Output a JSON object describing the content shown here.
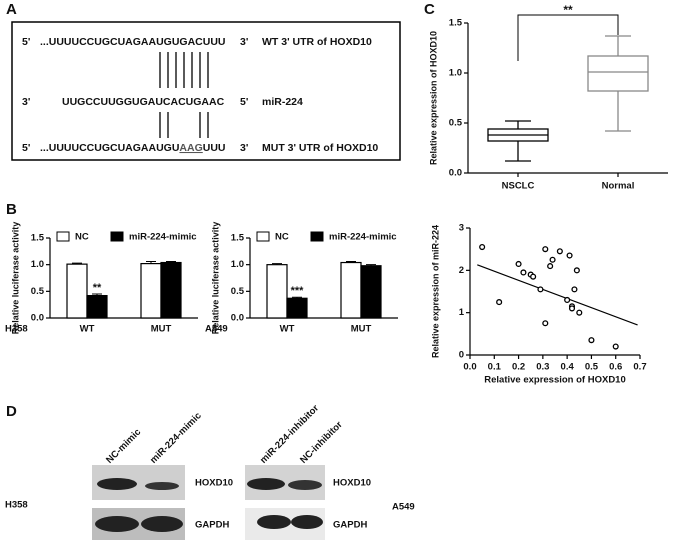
{
  "panels": {
    "a": "A",
    "b": "B",
    "c": "C",
    "d": "D"
  },
  "sequence": {
    "rows": [
      {
        "left": "5'",
        "seq": "...UUUUCCUGCUAGAAUGUGACUUU",
        "right": "3'",
        "label": "WT 3' UTR of HOXD10"
      },
      {
        "left": "3'",
        "seq": "UUGCCUUGGUGAUCACUGAAC",
        "right": "5'",
        "label": "miR-224"
      },
      {
        "left": "5'",
        "seq": "...UUUUCCUGCUAGAAUGU",
        "seq_underlined": "AAG",
        "seq_end": "UUU",
        "right": "3'",
        "label": "MUT 3' UTR of HOXD10"
      }
    ]
  },
  "chart_data": [
    {
      "type": "box",
      "ylabel": "Relative expression of HOXD10",
      "categories": [
        "NSCLC",
        "Normal"
      ],
      "colors": [
        "#000000",
        "#888888"
      ],
      "boxes": [
        {
          "min": 0.12,
          "q1": 0.32,
          "median": 0.38,
          "q3": 0.44,
          "max": 0.52
        },
        {
          "min": 0.42,
          "q1": 0.82,
          "median": 1.01,
          "q3": 1.17,
          "max": 1.37
        }
      ],
      "annotation": "**",
      "ylim": [
        0,
        1.5
      ],
      "yticks": [
        {
          "value": 0,
          "label": "0.0"
        },
        {
          "value": 0.5,
          "label": "0.5"
        },
        {
          "value": 1,
          "label": "1.0"
        },
        {
          "value": 1.5,
          "label": "1.5"
        }
      ]
    },
    {
      "type": "bar",
      "cell_line": "H358",
      "ylabel": "Relative luciferase activity",
      "categories": [
        "WT",
        "MUT"
      ],
      "series": [
        {
          "name": "NC",
          "color": "#ffffff",
          "values": [
            1.01,
            1.02
          ],
          "errors": [
            0.02,
            0.04
          ]
        },
        {
          "name": "miR-224-mimic",
          "color": "#000000",
          "values": [
            0.42,
            1.04
          ],
          "errors": [
            0.03,
            0.02
          ]
        }
      ],
      "annotations": [
        "**",
        null
      ],
      "ylim": [
        0,
        1.5
      ],
      "yticks": [
        {
          "value": 0,
          "label": "0.0"
        },
        {
          "value": 0.5,
          "label": "0.5"
        },
        {
          "value": 1,
          "label": "1.0"
        },
        {
          "value": 1.5,
          "label": "1.5"
        }
      ]
    },
    {
      "type": "bar",
      "cell_line": "A549",
      "ylabel": "Relative luciferase activity",
      "categories": [
        "WT",
        "MUT"
      ],
      "series": [
        {
          "name": "NC",
          "color": "#ffffff",
          "values": [
            1.0,
            1.04
          ],
          "errors": [
            0.02,
            0.02
          ]
        },
        {
          "name": "miR-224-mimic",
          "color": "#000000",
          "values": [
            0.37,
            0.98
          ],
          "errors": [
            0.02,
            0.02
          ]
        }
      ],
      "annotations": [
        "***",
        null
      ],
      "ylim": [
        0,
        1.5
      ],
      "yticks": [
        {
          "value": 0,
          "label": "0.0"
        },
        {
          "value": 0.5,
          "label": "0.5"
        },
        {
          "value": 1,
          "label": "1.0"
        },
        {
          "value": 1.5,
          "label": "1.5"
        }
      ]
    },
    {
      "type": "scatter",
      "xlabel": "Relative expression of HOXD10",
      "ylabel": "Relative expression of miR-224",
      "x": [
        0.05,
        0.12,
        0.2,
        0.22,
        0.25,
        0.26,
        0.29,
        0.31,
        0.31,
        0.33,
        0.34,
        0.37,
        0.4,
        0.41,
        0.42,
        0.42,
        0.43,
        0.44,
        0.45,
        0.5,
        0.6
      ],
      "y": [
        2.55,
        1.25,
        2.15,
        1.95,
        1.9,
        1.85,
        1.55,
        2.5,
        0.75,
        2.1,
        2.25,
        2.45,
        1.3,
        2.35,
        1.15,
        1.1,
        1.55,
        2.0,
        1.0,
        0.35,
        0.2
      ],
      "trendline": {
        "x": [
          0.03,
          0.69
        ],
        "y": [
          2.13,
          0.71
        ]
      },
      "xlim": [
        0,
        0.7
      ],
      "ylim": [
        0,
        3
      ],
      "xticks": [
        {
          "value": 0,
          "label": "0.0"
        },
        0.1,
        0.2,
        0.3,
        0.4,
        0.5,
        0.6,
        0.7
      ],
      "yticks": [
        0,
        1,
        2,
        3
      ]
    }
  ],
  "western_blot": [
    {
      "cell_line": "H358",
      "lanes": [
        "NC-mimic",
        "miR-224-mimic"
      ],
      "proteins": [
        "HOXD10",
        "GAPDH"
      ]
    },
    {
      "cell_line": "A549",
      "lanes": [
        "miR-224-inhibitor",
        "NC-inhibitor"
      ],
      "proteins": [
        "HOXD10",
        "GAPDH"
      ]
    }
  ]
}
